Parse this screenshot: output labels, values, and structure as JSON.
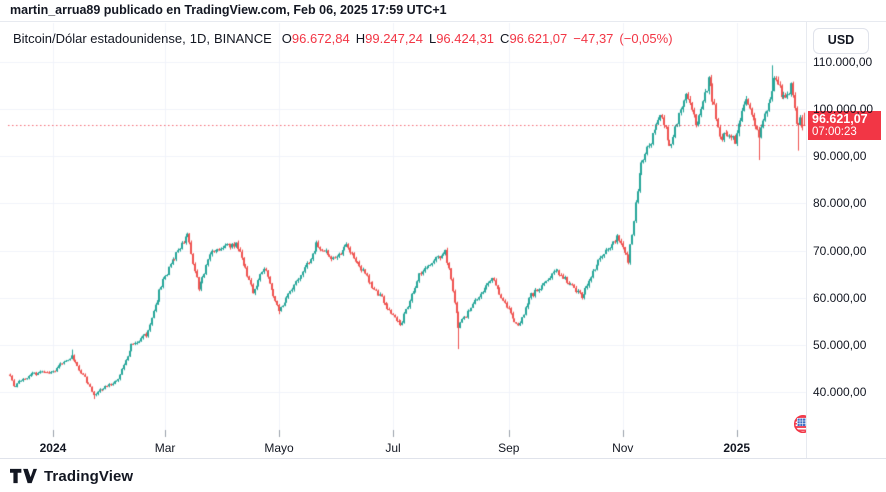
{
  "attribution": {
    "text": "martin_arrua89 publicado en TradingView.com, Feb 06, 2025 17:59 UTC+1"
  },
  "legend": {
    "symbol_text": "Bitcoin/Dólar estadounidense,",
    "interval_text": "1D,",
    "exchange": "BINANCE",
    "ohlc": {
      "o_label": "O",
      "o_value": "96.672,84",
      "h_label": "H",
      "h_value": "99.247,24",
      "l_label": "L",
      "l_value": "96.424,31",
      "c_label": "C",
      "c_value": "96.621,07",
      "change": "−47,37",
      "change_pct": "(−0,05%)"
    }
  },
  "price_axis": {
    "currency_button": "USD",
    "last_price_label": {
      "price": "96.621,07",
      "countdown": "07:00:23"
    }
  },
  "footer": {
    "brand": "TradingView"
  },
  "colors": {
    "up": "#26a69a",
    "down": "#ef5350",
    "accent_red": "#f23645",
    "text": "#131722",
    "grid": "#f0f3fa",
    "tickmark": "#9aa0ab",
    "border": "#e0e3eb",
    "background": "#ffffff"
  },
  "chart_data": {
    "type": "candlestick",
    "symbol": "Bitcoin/Dólar estadounidense",
    "interval": "1D",
    "exchange": "BINANCE",
    "currency": "USD",
    "last": {
      "open": 96672.84,
      "high": 99247.24,
      "low": 96424.31,
      "close": 96621.07,
      "change": -47.37,
      "change_pct": -0.05
    },
    "countdown": "07:00:23",
    "grid": true,
    "legend_position": "top-left",
    "ylim": [
      30500,
      118500
    ],
    "y_axis": {
      "ticks": [
        110000,
        100000,
        90000,
        80000,
        70000,
        60000,
        50000,
        40000
      ],
      "labels": [
        "110.000,00",
        "100.000,00",
        "90.000,00",
        "80.000,00",
        "70.000,00",
        "60.000,00",
        "50.000,00",
        "40.000,00"
      ]
    },
    "x_axis": {
      "start_date": "2023-12-09",
      "end_date": "2025-02-06",
      "ticks": [
        {
          "label": "2024",
          "date": "2024-01-01",
          "bold": true
        },
        {
          "label": "Mar",
          "date": "2024-03-01",
          "bold": false
        },
        {
          "label": "Mayo",
          "date": "2024-05-01",
          "bold": false
        },
        {
          "label": "Jul",
          "date": "2024-07-01",
          "bold": false
        },
        {
          "label": "Sep",
          "date": "2024-09-01",
          "bold": false
        },
        {
          "label": "Nov",
          "date": "2024-11-01",
          "bold": false
        },
        {
          "label": "2025",
          "date": "2025-01-01",
          "bold": true
        }
      ]
    },
    "price_path": [
      {
        "date": "2023-12-09",
        "close": 43700
      },
      {
        "date": "2023-12-11",
        "close": 41400
      },
      {
        "date": "2023-12-22",
        "close": 43900
      },
      {
        "date": "2024-01-01",
        "close": 44200
      },
      {
        "date": "2024-01-08",
        "close": 46900
      },
      {
        "date": "2024-01-11",
        "close": 47500
      },
      {
        "date": "2024-01-23",
        "close": 39600
      },
      {
        "date": "2024-02-05",
        "close": 42600
      },
      {
        "date": "2024-02-12",
        "close": 49900
      },
      {
        "date": "2024-02-20",
        "close": 52200
      },
      {
        "date": "2024-02-28",
        "close": 62500
      },
      {
        "date": "2024-03-04",
        "close": 67200
      },
      {
        "date": "2024-03-13",
        "close": 73100
      },
      {
        "date": "2024-03-19",
        "close": 62000
      },
      {
        "date": "2024-03-26",
        "close": 69900
      },
      {
        "date": "2024-04-08",
        "close": 71600
      },
      {
        "date": "2024-04-17",
        "close": 61300
      },
      {
        "date": "2024-04-23",
        "close": 66400
      },
      {
        "date": "2024-05-01",
        "close": 57500
      },
      {
        "date": "2024-05-15",
        "close": 66200
      },
      {
        "date": "2024-05-21",
        "close": 71400
      },
      {
        "date": "2024-05-30",
        "close": 68300
      },
      {
        "date": "2024-06-06",
        "close": 70800
      },
      {
        "date": "2024-06-14",
        "close": 66000
      },
      {
        "date": "2024-06-24",
        "close": 60300
      },
      {
        "date": "2024-07-05",
        "close": 54000
      },
      {
        "date": "2024-07-15",
        "close": 64700
      },
      {
        "date": "2024-07-29",
        "close": 69900
      },
      {
        "date": "2024-08-02",
        "close": 61500
      },
      {
        "date": "2024-08-05",
        "close": 54000
      },
      {
        "date": "2024-08-23",
        "close": 64100
      },
      {
        "date": "2024-09-01",
        "close": 57300
      },
      {
        "date": "2024-09-06",
        "close": 53900
      },
      {
        "date": "2024-09-13",
        "close": 60500
      },
      {
        "date": "2024-09-27",
        "close": 65800
      },
      {
        "date": "2024-10-10",
        "close": 60300
      },
      {
        "date": "2024-10-20",
        "close": 68400
      },
      {
        "date": "2024-10-29",
        "close": 72700
      },
      {
        "date": "2024-11-04",
        "close": 67800
      },
      {
        "date": "2024-11-11",
        "close": 88700
      },
      {
        "date": "2024-11-22",
        "close": 99000
      },
      {
        "date": "2024-11-26",
        "close": 91900
      },
      {
        "date": "2024-12-05",
        "close": 103900
      },
      {
        "date": "2024-12-10",
        "close": 96600
      },
      {
        "date": "2024-12-17",
        "close": 106100
      },
      {
        "date": "2024-12-23",
        "close": 94300
      },
      {
        "date": "2024-12-31",
        "close": 93400
      },
      {
        "date": "2025-01-06",
        "close": 102100
      },
      {
        "date": "2025-01-13",
        "close": 94500
      },
      {
        "date": "2025-01-20",
        "close": 104000
      },
      {
        "date": "2025-01-21",
        "close": 106100
      },
      {
        "date": "2025-01-27",
        "close": 102100
      },
      {
        "date": "2025-01-30",
        "close": 104700
      },
      {
        "date": "2025-02-01",
        "close": 100600
      },
      {
        "date": "2025-02-02",
        "close": 97700
      },
      {
        "date": "2025-02-03",
        "close": 96500
      },
      {
        "date": "2025-02-04",
        "close": 97800
      },
      {
        "date": "2025-02-05",
        "close": 96600
      },
      {
        "date": "2025-02-06",
        "close": 96621.07
      }
    ],
    "wick_overrides": [
      {
        "date": "2024-01-11",
        "high": 49000
      },
      {
        "date": "2024-01-23",
        "low": 38500
      },
      {
        "date": "2024-03-13",
        "high": 73800
      },
      {
        "date": "2024-05-01",
        "low": 56500
      },
      {
        "date": "2024-08-05",
        "low": 49100
      },
      {
        "date": "2025-01-13",
        "low": 89200
      },
      {
        "date": "2025-01-20",
        "high": 109300
      },
      {
        "date": "2025-02-03",
        "low": 91200
      }
    ]
  }
}
